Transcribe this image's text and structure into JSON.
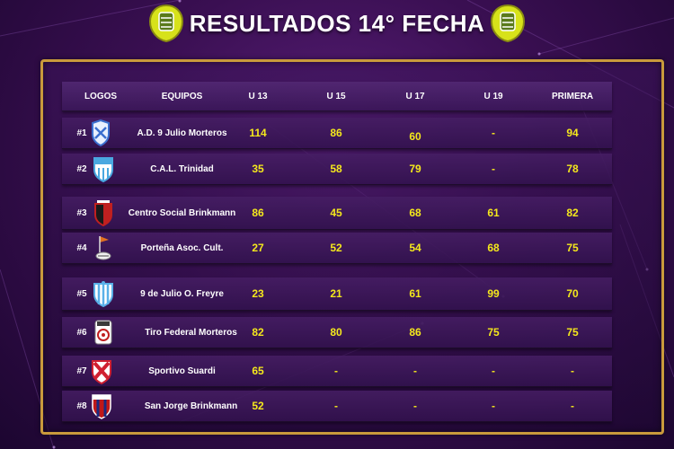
{
  "title": "RESULTADOS 14° FECHA",
  "columns": [
    "LOGOS",
    "EQUIPOS",
    "U 13",
    "U 15",
    "U 17",
    "U 19",
    "PRIMERA"
  ],
  "rows": [
    {
      "rank": "#1",
      "team": "A.D. 9 Julio Morteros",
      "logo": "9-julio-morteros-shield-icon",
      "u13": "114",
      "u15": "86",
      "u17": "60",
      "u19": "-",
      "primera": "94"
    },
    {
      "rank": "#2",
      "team": "C.A.L. Trinidad",
      "logo": "cal-trinidad-shield-icon",
      "u13": "35",
      "u15": "58",
      "u17": "79",
      "u19": "-",
      "primera": "78"
    },
    {
      "rank": "#3",
      "team": "Centro Social Brinkmann",
      "logo": "centro-social-shield-icon",
      "u13": "86",
      "u15": "45",
      "u17": "68",
      "u19": "61",
      "primera": "82"
    },
    {
      "rank": "#4",
      "team": "Porteña Asoc. Cult.",
      "logo": "portena-crest-icon",
      "u13": "27",
      "u15": "52",
      "u17": "54",
      "u19": "68",
      "primera": "75"
    },
    {
      "rank": "#5",
      "team": "9 de Julio O. Freyre",
      "logo": "9-julio-freyre-shield-icon",
      "u13": "23",
      "u15": "21",
      "u17": "61",
      "u19": "99",
      "primera": "70"
    },
    {
      "rank": "#6",
      "team": "Tiro Federal Morteros",
      "logo": "tiro-federal-shield-icon",
      "u13": "82",
      "u15": "80",
      "u17": "86",
      "u19": "75",
      "primera": "75"
    },
    {
      "rank": "#7",
      "team": "Sportivo Suardi",
      "logo": "sportivo-suardi-shield-icon",
      "u13": "65",
      "u15": "-",
      "u17": "-",
      "u19": "-",
      "primera": "-"
    },
    {
      "rank": "#8",
      "team": "San Jorge Brinkmann",
      "logo": "san-jorge-shield-icon",
      "u13": "52",
      "u15": "-",
      "u17": "-",
      "u19": "-",
      "primera": "-"
    }
  ],
  "colors": {
    "accent_gold": "#c99a3c",
    "value_yellow": "#f4e81c",
    "background": "#3a0f52"
  }
}
